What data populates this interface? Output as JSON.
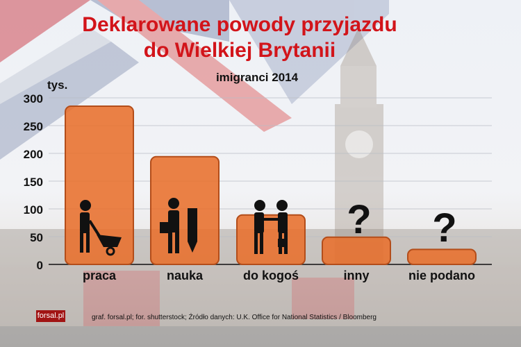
{
  "title_line1": "Deklarowane powody przyjazdu",
  "title_line2": "do Wielkiej Brytanii",
  "subtitle": "imigranci 2014",
  "logo_text": "forsal.pl",
  "source": "graf. forsal.pl; for. shutterstock;  Źródło danych:  U.K. Office for National Statistics / Bloomberg",
  "colors": {
    "bar": "#e8702c",
    "title": "#d2141a"
  },
  "chart_data": {
    "type": "bar",
    "categories": [
      "praca",
      "nauka",
      "do kogoś",
      "inny",
      "nie podano"
    ],
    "values": [
      285,
      194,
      89,
      49,
      27
    ],
    "ylabel": "tys.",
    "ylim": [
      0,
      300
    ],
    "yticks": [
      0,
      50,
      100,
      150,
      200,
      250,
      300
    ],
    "grid": true,
    "icons": [
      "worker-wheelbarrow-icon",
      "student-pencil-icon",
      "handshake-icon",
      "question-mark-icon",
      "question-mark-icon"
    ]
  }
}
